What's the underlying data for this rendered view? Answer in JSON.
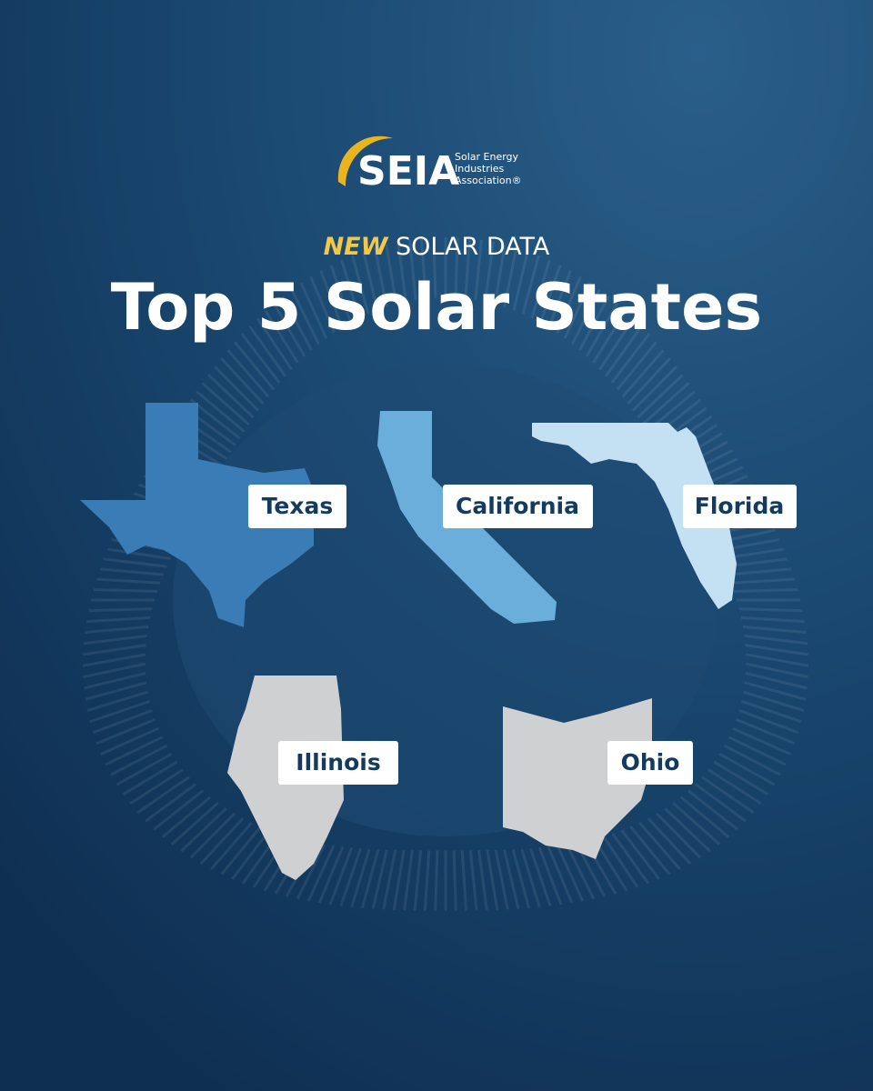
{
  "logo": {
    "acronym": "SEIA",
    "name_lines": [
      "Solar Energy",
      "Industries",
      "Association®"
    ]
  },
  "headline": {
    "emphasis": "NEW",
    "text": "SOLAR DATA"
  },
  "title": "Top 5 Solar States",
  "states": [
    {
      "label": "Texas"
    },
    {
      "label": "California"
    },
    {
      "label": "Florida"
    },
    {
      "label": "Illinois"
    },
    {
      "label": "Ohio"
    }
  ]
}
